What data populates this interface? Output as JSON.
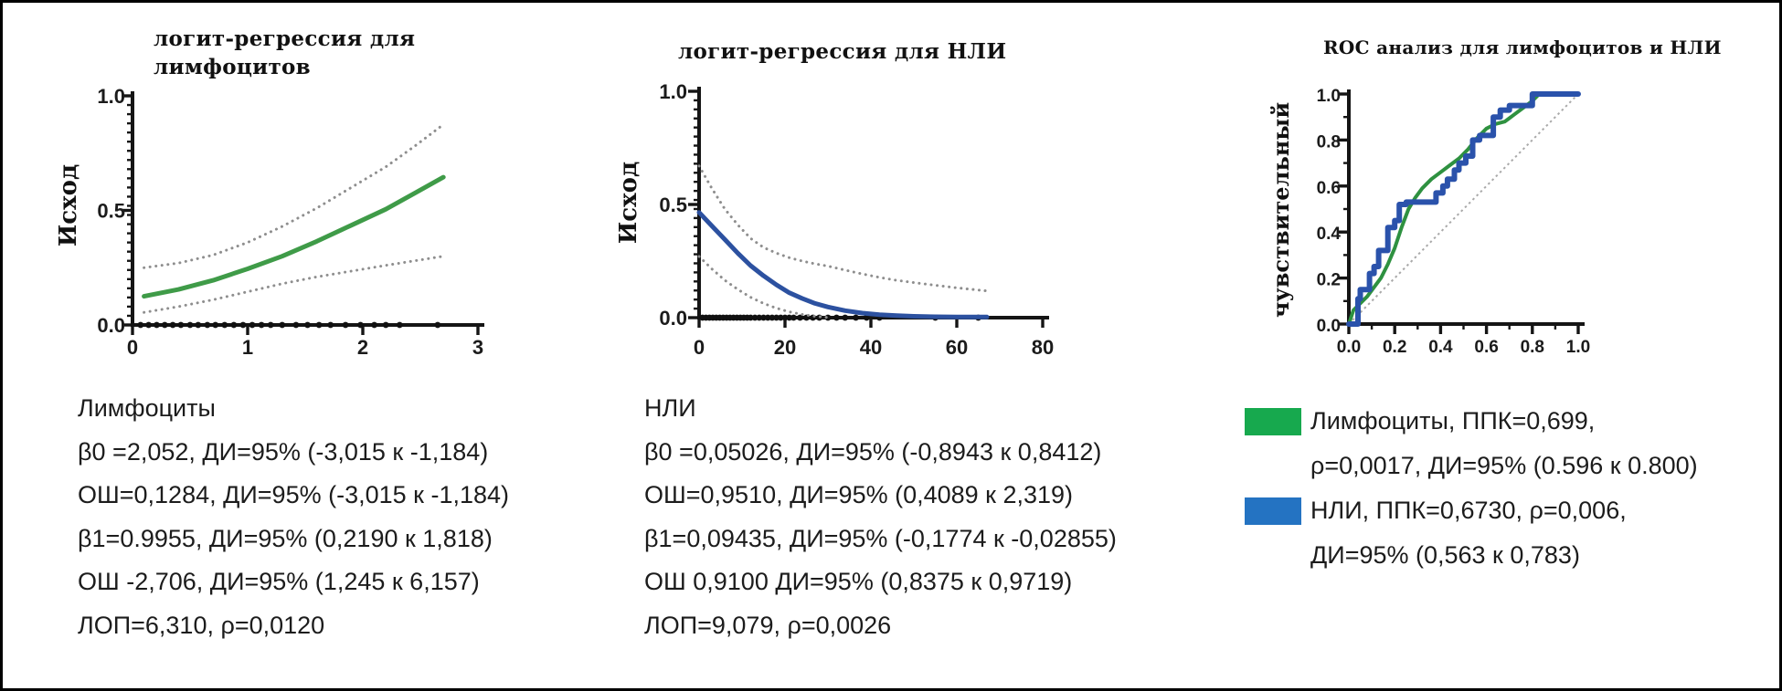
{
  "figure": {
    "background": "#ffffff",
    "border_color": "#000000"
  },
  "chart_data": [
    {
      "type": "line",
      "title": "логит-регрессия для лимфоцитов",
      "ylabel": "Исход",
      "xlim": [
        0,
        3
      ],
      "ylim": [
        0,
        1
      ],
      "grid": false,
      "xticks": [
        {
          "v": 0,
          "label": "0"
        },
        {
          "v": 1,
          "label": "1"
        },
        {
          "v": 2,
          "label": "2"
        },
        {
          "v": 3,
          "label": "3"
        }
      ],
      "yticks": [
        {
          "v": 1,
          "label": "1.0"
        },
        {
          "v": 0.5,
          "label": "0.5"
        },
        {
          "v": 0,
          "label": "0.0"
        }
      ],
      "series": [
        {
          "name": "ci-upper",
          "color": "#8e8e8e",
          "width": 3,
          "dash": "0.1 6.5",
          "x": [
            0.1,
            0.4,
            0.7,
            1.0,
            1.3,
            1.6,
            1.9,
            2.2,
            2.45,
            2.7
          ],
          "y": [
            0.25,
            0.27,
            0.305,
            0.36,
            0.43,
            0.51,
            0.6,
            0.69,
            0.78,
            0.875
          ]
        },
        {
          "name": "ci-lower",
          "color": "#8e8e8e",
          "width": 3,
          "dash": "0.1 6.5",
          "x": [
            0.1,
            0.4,
            0.7,
            1.0,
            1.3,
            1.6,
            1.9,
            2.2,
            2.45,
            2.7
          ],
          "y": [
            0.055,
            0.08,
            0.11,
            0.145,
            0.18,
            0.21,
            0.235,
            0.26,
            0.28,
            0.3
          ]
        },
        {
          "name": "logit-fit-lymphocytes",
          "color": "#3f9b48",
          "width": 5,
          "dash": "",
          "x": [
            0.1,
            0.4,
            0.7,
            1.0,
            1.3,
            1.6,
            1.9,
            2.2,
            2.45,
            2.7
          ],
          "y": [
            0.125,
            0.155,
            0.195,
            0.245,
            0.3,
            0.365,
            0.435,
            0.505,
            0.575,
            0.645
          ]
        }
      ],
      "rug_x": [
        0.07,
        0.14,
        0.21,
        0.28,
        0.35,
        0.42,
        0.5,
        0.57,
        0.65,
        0.72,
        0.8,
        0.88,
        0.96,
        1.04,
        1.12,
        1.2,
        1.3,
        1.42,
        1.52,
        1.62,
        1.72,
        1.85,
        1.98,
        2.1,
        2.2,
        2.32,
        2.65
      ]
    },
    {
      "type": "line",
      "title": "логит-регрессия для НЛИ",
      "ylabel": "Исход",
      "xlim": [
        0,
        80
      ],
      "ylim": [
        0,
        1
      ],
      "grid": false,
      "xticks": [
        {
          "v": 0,
          "label": "0"
        },
        {
          "v": 20,
          "label": "20"
        },
        {
          "v": 40,
          "label": "40"
        },
        {
          "v": 60,
          "label": "60"
        },
        {
          "v": 80,
          "label": "80"
        }
      ],
      "yticks": [
        {
          "v": 1,
          "label": "1.0"
        },
        {
          "v": 0.5,
          "label": "0.5"
        },
        {
          "v": 0,
          "label": "0.0"
        }
      ],
      "series": [
        {
          "name": "ci-upper",
          "color": "#8e8e8e",
          "width": 3,
          "dash": "0.1 6.5",
          "x": [
            0,
            3,
            6,
            9,
            12,
            15,
            18,
            21,
            24,
            27,
            30,
            34,
            38,
            42,
            46,
            50,
            55,
            60,
            67
          ],
          "y": [
            0.67,
            0.57,
            0.48,
            0.41,
            0.35,
            0.31,
            0.285,
            0.265,
            0.25,
            0.238,
            0.228,
            0.21,
            0.193,
            0.178,
            0.165,
            0.155,
            0.143,
            0.132,
            0.118
          ]
        },
        {
          "name": "ci-lower",
          "color": "#8e8e8e",
          "width": 3,
          "dash": "0.1 6.5",
          "x": [
            0,
            3,
            6,
            9,
            12,
            15,
            18,
            21,
            24,
            27,
            30
          ],
          "y": [
            0.27,
            0.215,
            0.165,
            0.125,
            0.09,
            0.063,
            0.042,
            0.026,
            0.014,
            0.006,
            0.001
          ]
        },
        {
          "name": "logit-fit-nli",
          "color": "#2c51a0",
          "width": 5,
          "dash": "",
          "x": [
            0,
            3,
            6,
            9,
            12,
            15,
            18,
            21,
            24,
            27,
            30,
            34,
            38,
            42,
            46,
            50,
            55,
            60,
            67
          ],
          "y": [
            0.465,
            0.405,
            0.345,
            0.285,
            0.23,
            0.185,
            0.145,
            0.11,
            0.085,
            0.063,
            0.047,
            0.031,
            0.02,
            0.013,
            0.009,
            0.006,
            0.004,
            0.003,
            0.003
          ]
        }
      ],
      "rug_x": [
        0.8,
        1.6,
        2.4,
        3.2,
        4,
        4.8,
        5.6,
        6.4,
        7.2,
        8,
        8.8,
        9.6,
        10.4,
        11.2,
        12,
        13,
        14,
        15,
        16,
        17,
        18,
        19,
        20,
        21,
        22,
        23.5,
        25,
        26.5,
        28,
        30,
        32,
        34,
        36.5,
        39,
        42,
        55,
        65
      ]
    },
    {
      "type": "roc",
      "title": "ROC анализ для лимфоцитов и НЛИ",
      "ylabel": "чувствительный",
      "xlim": [
        0,
        1
      ],
      "ylim": [
        0,
        1
      ],
      "grid": false,
      "diagonal": true,
      "xticks": [
        {
          "v": 0,
          "label": "0.0"
        },
        {
          "v": 0.2,
          "label": "0.2"
        },
        {
          "v": 0.4,
          "label": "0.4"
        },
        {
          "v": 0.6,
          "label": "0.6"
        },
        {
          "v": 0.8,
          "label": "0.8"
        },
        {
          "v": 1,
          "label": "1.0"
        }
      ],
      "yticks": [
        {
          "v": 1,
          "label": "1.0"
        },
        {
          "v": 0.8,
          "label": "0.8"
        },
        {
          "v": 0.6,
          "label": "0.6"
        },
        {
          "v": 0.4,
          "label": "0.4"
        },
        {
          "v": 0.2,
          "label": "0.2"
        },
        {
          "v": 0,
          "label": "0.0"
        }
      ],
      "series": [
        {
          "name": "roc-lymphocytes",
          "color": "#2e9140",
          "width": 4,
          "dash": "",
          "x": [
            0,
            0.02,
            0.05,
            0.08,
            0.11,
            0.14,
            0.17,
            0.2,
            0.23,
            0.26,
            0.29,
            0.32,
            0.36,
            0.4,
            0.44,
            0.48,
            0.52,
            0.56,
            0.6,
            0.64,
            0.68,
            0.72,
            0.76,
            0.8,
            0.83,
            1.0
          ],
          "y": [
            0,
            0.06,
            0.09,
            0.12,
            0.16,
            0.2,
            0.26,
            0.33,
            0.42,
            0.5,
            0.55,
            0.59,
            0.63,
            0.66,
            0.69,
            0.72,
            0.76,
            0.81,
            0.85,
            0.87,
            0.88,
            0.91,
            0.94,
            0.97,
            1.0,
            1.0
          ]
        },
        {
          "name": "roc-nli",
          "color": "#2a52ab",
          "width": 6,
          "dash": "",
          "x": [
            0,
            0.04,
            0.04,
            0.05,
            0.05,
            0.09,
            0.09,
            0.11,
            0.11,
            0.13,
            0.13,
            0.17,
            0.17,
            0.2,
            0.2,
            0.22,
            0.22,
            0.25,
            0.25,
            0.38,
            0.38,
            0.41,
            0.41,
            0.43,
            0.43,
            0.46,
            0.46,
            0.48,
            0.48,
            0.51,
            0.51,
            0.54,
            0.54,
            0.57,
            0.57,
            0.63,
            0.63,
            0.66,
            0.66,
            0.7,
            0.7,
            0.8,
            0.8,
            0.82,
            1.0
          ],
          "y": [
            0,
            0,
            0.11,
            0.11,
            0.15,
            0.15,
            0.22,
            0.22,
            0.25,
            0.25,
            0.32,
            0.32,
            0.42,
            0.42,
            0.45,
            0.45,
            0.52,
            0.52,
            0.53,
            0.53,
            0.57,
            0.57,
            0.6,
            0.6,
            0.63,
            0.63,
            0.67,
            0.67,
            0.7,
            0.7,
            0.73,
            0.73,
            0.8,
            0.8,
            0.82,
            0.82,
            0.9,
            0.9,
            0.93,
            0.93,
            0.95,
            0.95,
            1.0,
            1.0,
            1.0
          ]
        }
      ]
    }
  ],
  "stats_left": {
    "lines": [
      "Лимфоциты",
      "β0 =2,052, ДИ=95% (-3,015 к -1,184)",
      "ОШ=0,1284, ДИ=95% (-3,015 к -1,184)",
      "β1=0.9955, ДИ=95% (0,2190 к 1,818)",
      "ОШ -2,706, ДИ=95% (1,245 к 6,157)",
      "ЛОП=6,310, ρ=0,0120"
    ]
  },
  "stats_middle": {
    "lines": [
      "НЛИ",
      "β0 =0,05026, ДИ=95% (-0,8943 к 0,8412)",
      "ОШ=0,9510, ДИ=95% (0,4089 к 2,319)",
      "β1=0,09435, ДИ=95% (-0,1774 к -0,02855)",
      "ОШ 0,9100 ДИ=95% (0,8375 к 0,9719)",
      "ЛОП=9,079, ρ=0,0026"
    ]
  },
  "legend": {
    "items": [
      {
        "color": "#17a94e",
        "line1": "Лимфоциты, ППК=0,699,",
        "line2": "ρ=0,0017, ДИ=95% (0.596 к 0.800)"
      },
      {
        "color": "#2473c2",
        "line1": "НЛИ, ППК=0,6730, ρ=0,006,",
        "line2": "ДИ=95% (0,563 к 0,783)"
      }
    ]
  }
}
